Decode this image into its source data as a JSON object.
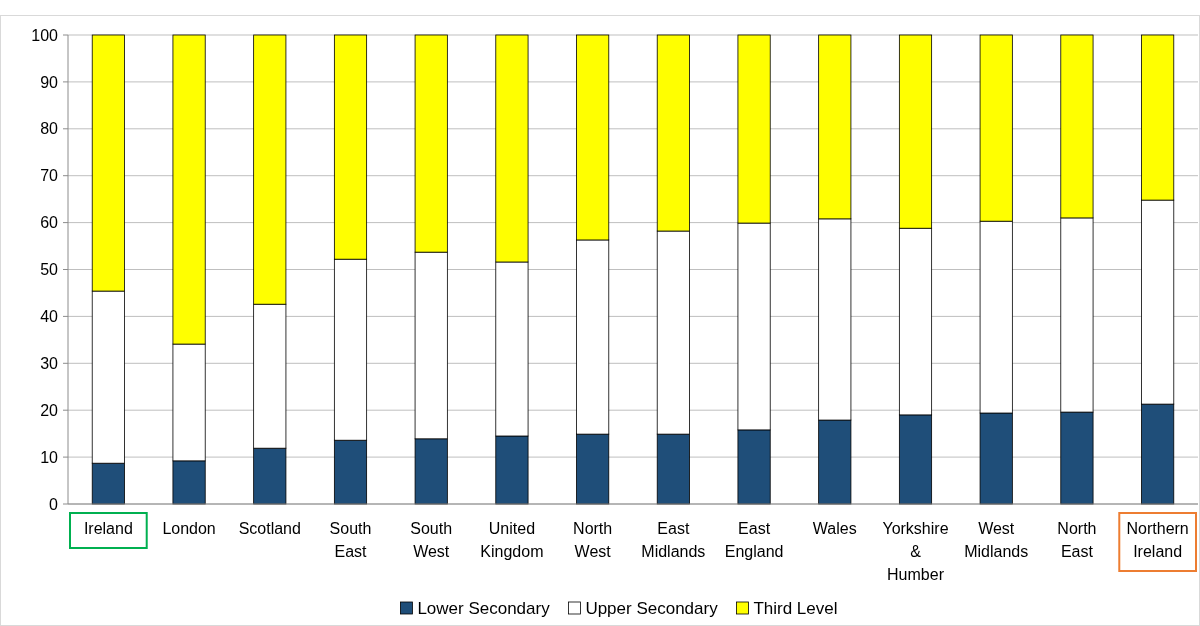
{
  "chart_data": {
    "type": "bar",
    "stacked": true,
    "categories": [
      "Ireland",
      "London",
      "Scotland",
      "South East",
      "South West",
      "United Kingdom",
      "North West",
      "East Midlands",
      "East England",
      "Wales",
      "Yorkshire & Humber",
      "West Midlands",
      "North East",
      "Northern Ireland"
    ],
    "series": [
      {
        "name": "Lower Secondary",
        "color": "#1f4e79",
        "values": [
          8.7,
          9.2,
          11.9,
          13.6,
          13.9,
          14.5,
          14.9,
          14.9,
          15.8,
          17.9,
          19.0,
          19.4,
          19.6,
          21.3
        ]
      },
      {
        "name": "Upper Secondary",
        "color": "#ffffff",
        "values": [
          36.7,
          24.9,
          30.7,
          38.6,
          39.8,
          37.1,
          41.4,
          43.3,
          44.1,
          42.9,
          39.8,
          40.9,
          41.4,
          43.5
        ]
      },
      {
        "name": "Third Level",
        "color": "#ffff00",
        "values": [
          54.6,
          65.9,
          57.4,
          47.8,
          46.3,
          48.4,
          43.7,
          41.8,
          40.1,
          39.2,
          41.2,
          39.7,
          39.0,
          35.2
        ]
      }
    ],
    "ylim": [
      0,
      100
    ],
    "yticks": [
      0,
      10,
      20,
      30,
      40,
      50,
      60,
      70,
      80,
      90,
      100
    ],
    "grid": "y",
    "legend": "bottom"
  }
}
